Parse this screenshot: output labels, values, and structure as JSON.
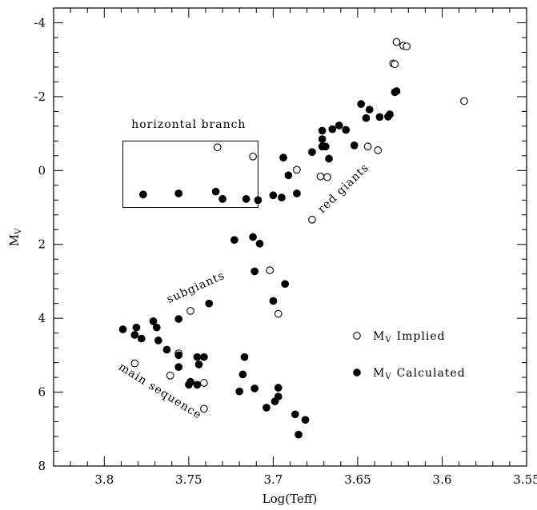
{
  "chart_data": {
    "type": "scatter",
    "title": "",
    "xlabel": "Log(Teff)",
    "ylabel": "M",
    "ylabel_sub": "V",
    "xlim": [
      3.83,
      3.55
    ],
    "ylim": [
      8,
      -4.4
    ],
    "x_ticks": [
      3.8,
      3.75,
      3.7,
      3.65,
      3.6,
      3.55
    ],
    "x_tick_labels": [
      "3.8",
      "3.75",
      "3.7",
      "3.65",
      "3.6",
      "3.55"
    ],
    "y_ticks": [
      -4,
      -2,
      0,
      2,
      4,
      6,
      8
    ],
    "y_tick_labels": [
      "-4",
      "-2",
      "0",
      "2",
      "4",
      "6",
      "8"
    ],
    "grid": false,
    "legend_position": "right",
    "series": [
      {
        "name": "Implied",
        "legend_prefix": "M",
        "legend_sub": "V",
        "marker": "open-circle",
        "points": [
          [
            3.627,
            -3.48
          ],
          [
            3.623,
            -3.38
          ],
          [
            3.621,
            -3.36
          ],
          [
            3.629,
            -2.9
          ],
          [
            3.628,
            -2.88
          ],
          [
            3.587,
            -1.88
          ],
          [
            3.644,
            -0.65
          ],
          [
            3.638,
            -0.55
          ],
          [
            3.733,
            -0.63
          ],
          [
            3.712,
            -0.38
          ],
          [
            3.686,
            -0.02
          ],
          [
            3.672,
            0.16
          ],
          [
            3.668,
            0.18
          ],
          [
            3.677,
            1.33
          ],
          [
            3.702,
            2.7
          ],
          [
            3.697,
            3.88
          ],
          [
            3.749,
            3.8
          ],
          [
            3.782,
            5.22
          ],
          [
            3.756,
            4.95
          ],
          [
            3.761,
            5.55
          ],
          [
            3.741,
            5.75
          ],
          [
            3.741,
            6.45
          ]
        ]
      },
      {
        "name": "Calculated",
        "legend_prefix": "M",
        "legend_sub": "V",
        "marker": "filled-circle",
        "points": [
          [
            3.627,
            -2.15
          ],
          [
            3.628,
            -2.12
          ],
          [
            3.648,
            -1.8
          ],
          [
            3.643,
            -1.65
          ],
          [
            3.631,
            -1.52
          ],
          [
            3.645,
            -1.42
          ],
          [
            3.637,
            -1.45
          ],
          [
            3.632,
            -1.46
          ],
          [
            3.661,
            -1.22
          ],
          [
            3.657,
            -1.1
          ],
          [
            3.665,
            -1.12
          ],
          [
            3.671,
            -1.08
          ],
          [
            3.671,
            -0.85
          ],
          [
            3.671,
            -0.65
          ],
          [
            3.669,
            -0.65
          ],
          [
            3.652,
            -0.68
          ],
          [
            3.677,
            -0.5
          ],
          [
            3.667,
            -0.32
          ],
          [
            3.694,
            -0.35
          ],
          [
            3.691,
            0.13
          ],
          [
            3.777,
            0.65
          ],
          [
            3.756,
            0.62
          ],
          [
            3.734,
            0.57
          ],
          [
            3.73,
            0.77
          ],
          [
            3.716,
            0.77
          ],
          [
            3.709,
            0.8
          ],
          [
            3.7,
            0.67
          ],
          [
            3.695,
            0.73
          ],
          [
            3.686,
            0.62
          ],
          [
            3.723,
            1.88
          ],
          [
            3.712,
            1.8
          ],
          [
            3.708,
            1.98
          ],
          [
            3.711,
            2.73
          ],
          [
            3.693,
            3.07
          ],
          [
            3.7,
            3.53
          ],
          [
            3.738,
            3.6
          ],
          [
            3.789,
            4.3
          ],
          [
            3.781,
            4.25
          ],
          [
            3.771,
            4.08
          ],
          [
            3.769,
            4.25
          ],
          [
            3.756,
            4.02
          ],
          [
            3.782,
            4.45
          ],
          [
            3.778,
            4.55
          ],
          [
            3.768,
            4.6
          ],
          [
            3.763,
            4.85
          ],
          [
            3.756,
            5.0
          ],
          [
            3.745,
            5.05
          ],
          [
            3.741,
            5.05
          ],
          [
            3.717,
            5.05
          ],
          [
            3.744,
            5.25
          ],
          [
            3.756,
            5.32
          ],
          [
            3.718,
            5.52
          ],
          [
            3.749,
            5.72
          ],
          [
            3.745,
            5.8
          ],
          [
            3.75,
            5.8
          ],
          [
            3.711,
            5.9
          ],
          [
            3.72,
            5.98
          ],
          [
            3.697,
            5.88
          ],
          [
            3.697,
            6.12
          ],
          [
            3.699,
            6.25
          ],
          [
            3.704,
            6.42
          ],
          [
            3.687,
            6.6
          ],
          [
            3.681,
            6.75
          ],
          [
            3.685,
            7.15
          ]
        ]
      }
    ],
    "annotations": [
      {
        "text": "horizontal branch",
        "x": 3.75,
        "y": -1.15,
        "angle": 0
      },
      {
        "text": "red giants",
        "x": 3.657,
        "y": 0.55,
        "angle": -44
      },
      {
        "text": "subgiants",
        "x": 3.745,
        "y": 3.25,
        "angle": -24
      },
      {
        "text": "main sequence",
        "x": 3.768,
        "y": 6.05,
        "angle": 32
      }
    ],
    "hb_box": {
      "x0": 3.789,
      "x1": 3.709,
      "y0": -0.8,
      "y1": 1.0
    }
  }
}
